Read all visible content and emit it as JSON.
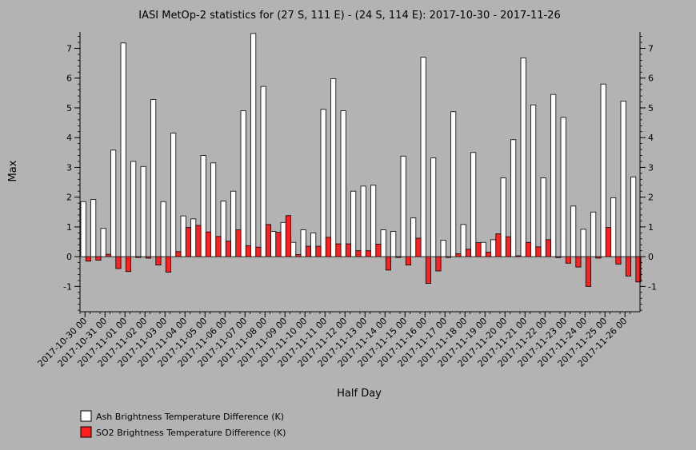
{
  "chart_data": {
    "type": "bar",
    "title": "IASI MetOp-2 statistics for (27 S, 111 E) - (24 S, 114 E): 2017-10-30 - 2017-11-26",
    "xlabel": "Half Day",
    "ylabel": "Max",
    "ylim": [
      -1.85,
      7.55
    ],
    "yticks": [
      -1,
      0,
      1,
      2,
      3,
      4,
      5,
      6,
      7
    ],
    "grid": false,
    "legend_position": "bottom-left",
    "x_tick_labels": [
      "2017-10-30 00",
      "2017-10-31 00",
      "2017-11-01 00",
      "2017-11-02 00",
      "2017-11-03 00",
      "2017-11-04 00",
      "2017-11-05 00",
      "2017-11-06 00",
      "2017-11-07 00",
      "2017-11-08 00",
      "2017-11-09 00",
      "2017-11-10 00",
      "2017-11-11 00",
      "2017-11-12 00",
      "2017-11-13 00",
      "2017-11-14 00",
      "2017-11-15 00",
      "2017-11-16 00",
      "2017-11-17 00",
      "2017-11-18 00",
      "2017-11-19 00",
      "2017-11-20 00",
      "2017-11-21 00",
      "2017-11-22 00",
      "2017-11-23 00",
      "2017-11-24 00",
      "2017-11-25 00",
      "2017-11-26 00"
    ],
    "series": [
      {
        "name": "Ash Brightness Temperature Difference (K)",
        "color": "#ffffff",
        "values": [
          1.85,
          1.92,
          0.95,
          3.58,
          7.18,
          3.2,
          3.03,
          5.28,
          1.85,
          4.15,
          1.37,
          1.27,
          3.4,
          3.15,
          1.87,
          2.2,
          4.9,
          7.5,
          5.72,
          0.85,
          1.15,
          0.48,
          0.9,
          0.8,
          4.95,
          5.98,
          4.9,
          2.2,
          2.37,
          2.4,
          0.9,
          0.85,
          3.38,
          1.3,
          6.7,
          3.32,
          0.55,
          4.87,
          1.08,
          3.5,
          0.48,
          0.57,
          2.65,
          3.93,
          6.68,
          5.1,
          2.65,
          5.45,
          4.68,
          1.7,
          0.92,
          1.5,
          5.8,
          1.98,
          5.23,
          2.68
        ]
      },
      {
        "name": "SO2 Brightness Temperature Difference (K)",
        "color": "#ff2020",
        "values": [
          -0.15,
          -0.12,
          0.08,
          -0.4,
          -0.5,
          -0.02,
          -0.05,
          -0.28,
          -0.52,
          0.17,
          0.98,
          1.05,
          0.83,
          0.68,
          0.52,
          0.9,
          0.37,
          0.32,
          1.08,
          0.82,
          1.38,
          0.07,
          0.35,
          0.35,
          0.65,
          0.43,
          0.43,
          0.2,
          0.2,
          0.42,
          -0.45,
          -0.02,
          -0.28,
          0.62,
          -0.9,
          -0.48,
          -0.02,
          0.1,
          0.25,
          0.47,
          0.15,
          0.77,
          0.67,
          0.03,
          0.48,
          0.33,
          0.57,
          -0.03,
          -0.22,
          -0.35,
          -1.0,
          -0.05,
          0.98,
          -0.25,
          -0.65,
          -0.85
        ]
      }
    ]
  }
}
